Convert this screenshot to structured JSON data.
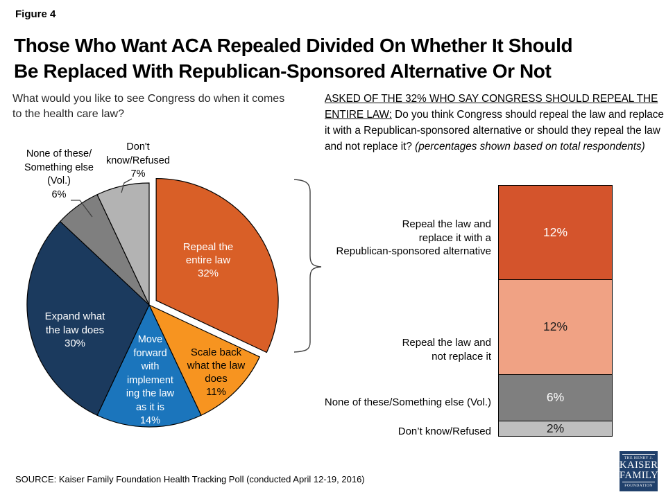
{
  "figure_label": "Figure 4",
  "title": {
    "line1": "Those Who Want ACA Repealed Divided On Whether It Should",
    "line2": "Be Replaced With Republican-Sponsored Alternative Or Not"
  },
  "question_left": "What would you like to see Congress do when it comes\nto the health care law?",
  "question_right": {
    "underlined": "ASKED OF THE 32% WHO SAY CONGRESS SHOULD REPEAL THE\nENTIRE LAW:",
    "normal": " Do you think Congress should repeal the law and replace it with a Republican-sponsored alternative or should they repeal the law and not replace it? ",
    "italic": "(percentages shown based on total respondents)"
  },
  "source_note": "SOURCE: Kaiser Family Foundation Health Tracking Poll (conducted April 12-19, 2016)",
  "logo": {
    "line1": "THE HENRY J.",
    "line2": "KAISER",
    "line3": "FAMILY",
    "line4": "FOUNDATION",
    "bg_color": "#20406B"
  },
  "chart_data": [
    {
      "type": "pie",
      "unit": "%",
      "question": "What would you like to see Congress do when it comes to the health care law?",
      "slices": [
        {
          "label": "Repeal the entire law",
          "value": 32,
          "color": "#D95F27",
          "text_color": "#FFFFFF",
          "exploded": true,
          "display": "Repeal the\nentire law\n32%"
        },
        {
          "label": "Scale back what the law does",
          "value": 11,
          "color": "#F79420",
          "text_color": "#000000",
          "exploded": false,
          "display": "Scale back\nwhat the law\ndoes\n11%"
        },
        {
          "label": "Move forward with implementing the law as it is",
          "value": 14,
          "color": "#1B75BC",
          "text_color": "#FFFFFF",
          "exploded": false,
          "display": "Move\nforward\nwith\nimplement\ning the law\nas it is\n14%"
        },
        {
          "label": "Expand what the law does",
          "value": 30,
          "color": "#1B3A5E",
          "text_color": "#FFFFFF",
          "exploded": false,
          "display": "Expand what\nthe law does\n30%"
        },
        {
          "label": "None of these/Something else (Vol.)",
          "value": 6,
          "color": "#7F7F7F",
          "text_color": "#000000",
          "exploded": false,
          "display": "None of these/\nSomething else\n(Vol.)\n6%"
        },
        {
          "label": "Don't know/Refused",
          "value": 7,
          "color": "#B3B3B3",
          "text_color": "#000000",
          "exploded": false,
          "display": "Don't\nknow/Refused\n7%"
        }
      ]
    },
    {
      "type": "bar",
      "stacked": true,
      "unit": "%",
      "total": 32,
      "note": "percentages shown based on total respondents",
      "segments": [
        {
          "label": "Repeal the law and replace it with a Republican-sponsored alternative",
          "label_display": "Repeal the law and\nreplace it with a\nRepublican-sponsored alternative",
          "value": 12,
          "display": "12%",
          "color": "#D4542C",
          "text_color": "#FFFFFF"
        },
        {
          "label": "Repeal the law and not replace it",
          "label_display": "Repeal the law and\nnot replace it",
          "value": 12,
          "display": "12%",
          "color": "#F0A284",
          "text_color": "#1A1A1A"
        },
        {
          "label": "None of these/Something else (Vol.)",
          "label_display": "None of these/Something else (Vol.)",
          "value": 6,
          "display": "6%",
          "color": "#7F7F7F",
          "text_color": "#FFFFFF"
        },
        {
          "label": "Don’t know/Refused",
          "label_display": "Don’t know/Refused",
          "value": 2,
          "display": "2%",
          "color": "#BFBFBF",
          "text_color": "#1A1A1A"
        }
      ]
    }
  ]
}
